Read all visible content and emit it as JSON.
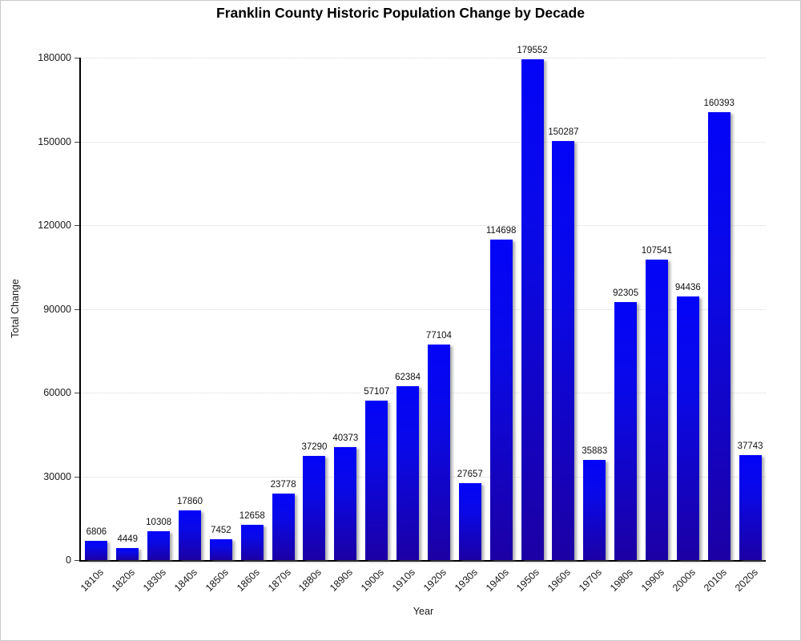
{
  "chart_data": {
    "type": "bar",
    "title": "Franklin County Historic Population Change by Decade",
    "xlabel": "Year",
    "ylabel": "Total Change",
    "categories": [
      "1810s",
      "1820s",
      "1830s",
      "1840s",
      "1850s",
      "1860s",
      "1870s",
      "1880s",
      "1890s",
      "1900s",
      "1910s",
      "1920s",
      "1930s",
      "1940s",
      "1950s",
      "1960s",
      "1970s",
      "1980s",
      "1990s",
      "2000s",
      "2010s",
      "2020s"
    ],
    "values": [
      6806,
      4449,
      10308,
      17860,
      7452,
      12658,
      23778,
      37290,
      40373,
      57107,
      62384,
      77104,
      27657,
      114698,
      179552,
      150287,
      35883,
      92305,
      107541,
      94436,
      160393,
      37743
    ],
    "ylim": [
      0,
      180000
    ],
    "yticks": [
      0,
      30000,
      60000,
      90000,
      120000,
      150000,
      180000
    ],
    "grid": "horizontal dotted lines at y ticks",
    "legend_position": "none",
    "value_labels_shown": true,
    "bar_color_top": "#0404f8",
    "bar_color_bottom": "#1c00a4",
    "gridline_color": "#d8d8d8",
    "axis_color": "#000000"
  }
}
